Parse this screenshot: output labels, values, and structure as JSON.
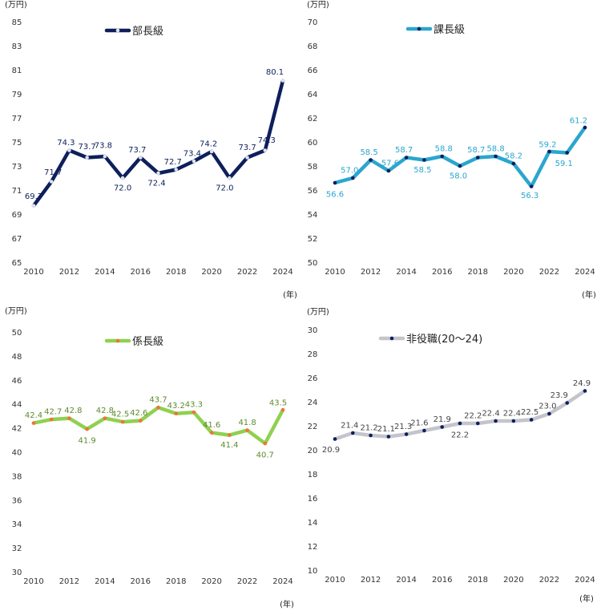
{
  "chart_data": [
    {
      "type": "line",
      "y_unit": "(万円)",
      "x_unit": "(年)",
      "ylim": [
        65,
        85
      ],
      "y_ticks": [
        65,
        67,
        69,
        71,
        73,
        75,
        77,
        79,
        81,
        83,
        85
      ],
      "x_ticks": [
        2010,
        2012,
        2014,
        2016,
        2018,
        2020,
        2022,
        2024
      ],
      "x": [
        2010,
        2011,
        2012,
        2013,
        2014,
        2015,
        2016,
        2017,
        2018,
        2019,
        2020,
        2021,
        2022,
        2023,
        2024
      ],
      "series": [
        {
          "name": "部長級",
          "color": "#0d1f5c",
          "marker_color": "#dde2ee",
          "label_color": "#0d1f5c",
          "values": [
            69.7,
            71.7,
            74.3,
            73.7,
            73.8,
            72.0,
            73.7,
            72.4,
            72.7,
            73.4,
            74.2,
            72.0,
            73.7,
            74.3,
            80.1
          ],
          "labels": [
            "69.7",
            "71.7",
            "74.3",
            "73.7",
            "73.8",
            "72.0",
            "73.7",
            "72.4",
            "72.7",
            "73.4",
            "74.2",
            "72.0",
            "73.7",
            "74.3",
            "80.1"
          ]
        }
      ],
      "legend": "top-center",
      "grid": false
    },
    {
      "type": "line",
      "y_unit": "(万円)",
      "x_unit": "(年)",
      "ylim": [
        50,
        70
      ],
      "y_ticks": [
        50,
        52,
        54,
        56,
        58,
        60,
        62,
        64,
        66,
        68,
        70
      ],
      "x_ticks": [
        2010,
        2012,
        2014,
        2016,
        2018,
        2020,
        2022,
        2024
      ],
      "x": [
        2010,
        2011,
        2012,
        2013,
        2014,
        2015,
        2016,
        2017,
        2018,
        2019,
        2020,
        2021,
        2022,
        2023,
        2024
      ],
      "series": [
        {
          "name": "課長級",
          "color": "#2aa6cf",
          "marker_color": "#0d1f5c",
          "label_color": "#2aa6cf",
          "values": [
            56.6,
            57.0,
            58.5,
            57.6,
            58.7,
            58.5,
            58.8,
            58.0,
            58.7,
            58.8,
            58.2,
            56.3,
            59.2,
            59.1,
            61.2
          ],
          "labels": [
            "56.6",
            "57.0",
            "58.5",
            "57.6",
            "58.7",
            "58.5",
            "58.8",
            "58.0",
            "58.7",
            "58.8",
            "58.2",
            "56.3",
            "59.2",
            "59.1",
            "61.2"
          ]
        }
      ],
      "legend": "top-center",
      "grid": false
    },
    {
      "type": "line",
      "y_unit": "(万円)",
      "x_unit": "(年)",
      "ylim": [
        30,
        50
      ],
      "y_ticks": [
        30,
        32,
        34,
        36,
        38,
        40,
        42,
        44,
        46,
        48,
        50
      ],
      "x_ticks": [
        2010,
        2012,
        2014,
        2016,
        2018,
        2020,
        2022,
        2024
      ],
      "x": [
        2010,
        2011,
        2012,
        2013,
        2014,
        2015,
        2016,
        2017,
        2018,
        2019,
        2020,
        2021,
        2022,
        2023,
        2024
      ],
      "series": [
        {
          "name": "係長級",
          "color": "#8fd14f",
          "marker_color": "#f0733a",
          "label_color": "#5e8a2e",
          "values": [
            42.4,
            42.7,
            42.8,
            41.9,
            42.8,
            42.5,
            42.6,
            43.7,
            43.2,
            43.3,
            41.6,
            41.4,
            41.8,
            40.7,
            43.5
          ],
          "labels": [
            "42.4",
            "42.7",
            "42.8",
            "41.9",
            "42.8",
            "42.5",
            "42.6",
            "43.7",
            "43.2",
            "43.3",
            "41.6",
            "41.4",
            "41.8",
            "40.7",
            "43.5"
          ]
        }
      ],
      "legend": "top-center",
      "grid": false
    },
    {
      "type": "line",
      "y_unit": "(万円)",
      "x_unit": "(年)",
      "ylim": [
        10,
        30
      ],
      "y_ticks": [
        10,
        12,
        14,
        16,
        18,
        20,
        22,
        24,
        26,
        28,
        30
      ],
      "x_ticks": [
        2010,
        2012,
        2014,
        2016,
        2018,
        2020,
        2022,
        2024
      ],
      "x": [
        2010,
        2011,
        2012,
        2013,
        2014,
        2015,
        2016,
        2017,
        2018,
        2019,
        2020,
        2021,
        2022,
        2023,
        2024
      ],
      "series": [
        {
          "name": "非役職(20～24)",
          "color": "#c4c4cc",
          "marker_color": "#0d1f5c",
          "label_color": "#444444",
          "values": [
            20.9,
            21.4,
            21.2,
            21.1,
            21.3,
            21.6,
            21.9,
            22.2,
            22.2,
            22.4,
            22.4,
            22.5,
            23.0,
            23.9,
            24.9
          ],
          "labels": [
            "20.9",
            "21.4",
            "21.2",
            "21.1",
            "21.3",
            "21.6",
            "21.9",
            "22.2",
            "22.2",
            "22.4",
            "22.4",
            "22.5",
            "23.0",
            "23.9",
            "24.9"
          ]
        }
      ],
      "legend": "top-center",
      "grid": false
    }
  ]
}
